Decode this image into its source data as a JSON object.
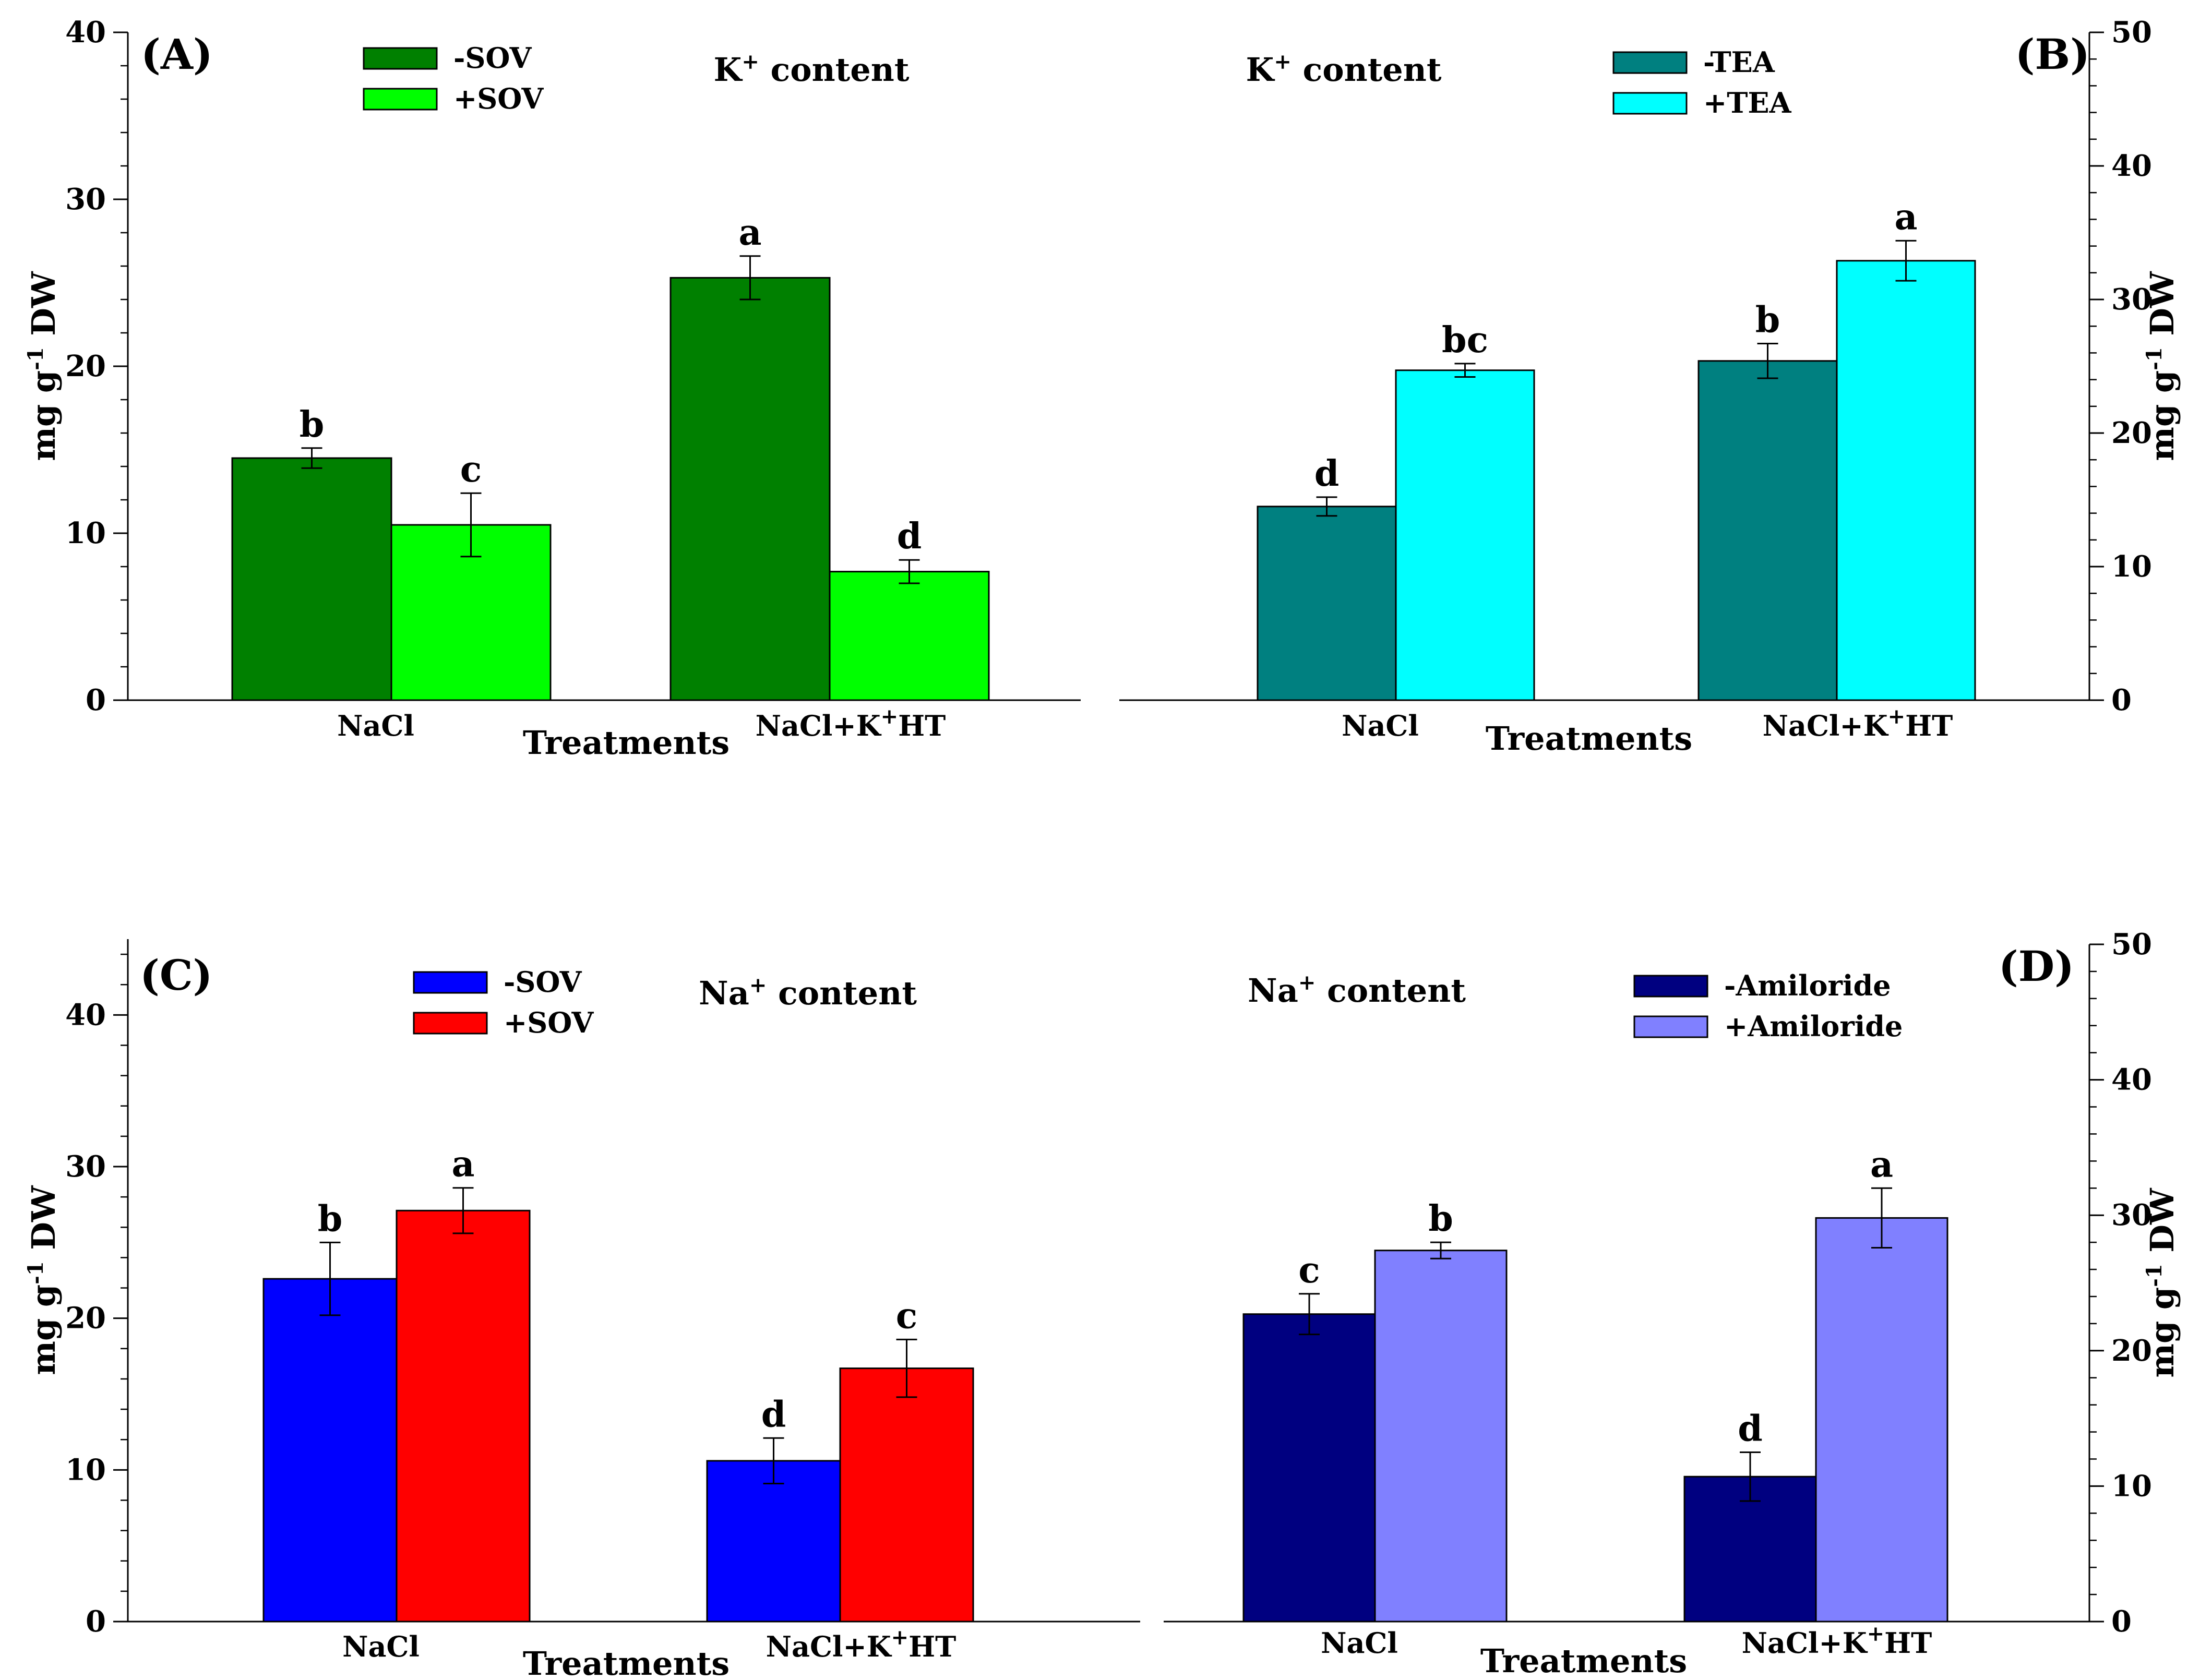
{
  "chart_data": [
    {
      "type": "bar",
      "panel": "(A)",
      "title": "K+ content",
      "xlabel": "Treatments",
      "ylabel": "mg g-1 DW",
      "axis_side": "left",
      "ylim": [
        0,
        40
      ],
      "yticks": [
        0,
        10,
        20,
        30,
        40
      ],
      "categories": [
        "NaCl",
        "NaCl+K+HT"
      ],
      "series": [
        {
          "name": "-SOV",
          "color": "#008000",
          "values": [
            14.5,
            25.3
          ],
          "errors": [
            0.6,
            1.3
          ],
          "letters": [
            "b",
            "a"
          ]
        },
        {
          "name": "+SOV",
          "color": "#00ff00",
          "values": [
            10.5,
            7.7
          ],
          "errors": [
            1.9,
            0.7
          ],
          "letters": [
            "c",
            "d"
          ]
        }
      ]
    },
    {
      "type": "bar",
      "panel": "(B)",
      "title": "K+ content",
      "xlabel": "Treatments",
      "ylabel": "mg g-1 DW",
      "axis_side": "right",
      "ylim": [
        0,
        50
      ],
      "yticks": [
        0,
        10,
        20,
        30,
        40,
        50
      ],
      "categories": [
        "NaCl",
        "NaCl+K+HT"
      ],
      "series": [
        {
          "name": "-TEA",
          "color": "#008080",
          "values": [
            14.5,
            25.4
          ],
          "errors": [
            0.7,
            1.3
          ],
          "letters": [
            "d",
            "b"
          ]
        },
        {
          "name": "+TEA",
          "color": "#00ffff",
          "values": [
            24.7,
            32.9
          ],
          "errors": [
            0.5,
            1.5
          ],
          "letters": [
            "bc",
            "a"
          ]
        }
      ]
    },
    {
      "type": "bar",
      "panel": "(C)",
      "title": "Na+ content",
      "xlabel": "Treatments",
      "ylabel": "mg g-1 DW",
      "axis_side": "left",
      "ylim": [
        0,
        45
      ],
      "yticks": [
        0,
        10,
        20,
        30,
        40
      ],
      "categories": [
        "NaCl",
        "NaCl+K+HT"
      ],
      "series": [
        {
          "name": "-SOV",
          "color": "#0000ff",
          "values": [
            22.6,
            10.6
          ],
          "errors": [
            2.4,
            1.5
          ],
          "letters": [
            "b",
            "d"
          ]
        },
        {
          "name": "+SOV",
          "color": "#ff0000",
          "values": [
            27.1,
            16.7
          ],
          "errors": [
            1.5,
            1.9
          ],
          "letters": [
            "a",
            "c"
          ]
        }
      ]
    },
    {
      "type": "bar",
      "panel": "(D)",
      "title": "Na+ content",
      "xlabel": "Treatments",
      "ylabel": "mg g-1 DW",
      "axis_side": "right",
      "ylim": [
        0,
        50
      ],
      "yticks": [
        0,
        10,
        20,
        30,
        40,
        50
      ],
      "categories": [
        "NaCl",
        "NaCl+K+HT"
      ],
      "series": [
        {
          "name": "-Amiloride",
          "color": "#000080",
          "values": [
            22.7,
            10.7
          ],
          "errors": [
            1.5,
            1.8
          ],
          "letters": [
            "c",
            "d"
          ]
        },
        {
          "name": "+Amiloride",
          "color": "#8080ff",
          "values": [
            27.4,
            29.8
          ],
          "errors": [
            0.6,
            2.2
          ],
          "letters": [
            "b",
            "a"
          ]
        }
      ]
    }
  ]
}
